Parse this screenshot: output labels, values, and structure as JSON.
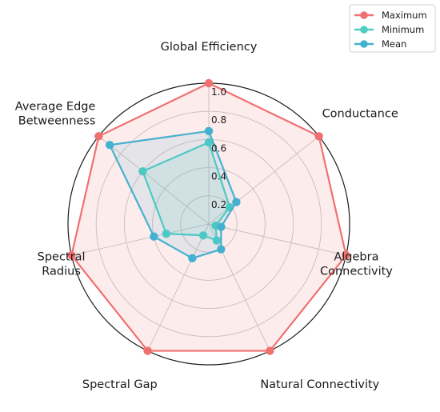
{
  "chart_data": {
    "type": "radar",
    "axes": [
      [
        "Global Efficiency"
      ],
      [
        "Conductance"
      ],
      [
        "Algebra",
        "Connectivity"
      ],
      [
        "Natural Connectivity"
      ],
      [
        "Spectral Gap"
      ],
      [
        "Spectral",
        "Radius"
      ],
      [
        "Average Edge",
        "Betweenness"
      ]
    ],
    "rlim": [
      0,
      1.0
    ],
    "rticks": [
      "0.2",
      "0.4",
      "0.6",
      "0.8",
      "1.0"
    ],
    "rtick_values": [
      0.2,
      0.4,
      0.6,
      0.8,
      1.0
    ],
    "grid": true,
    "legend_position": "top-right",
    "series": [
      {
        "name": "Maximum",
        "color": "#f07070",
        "values": [
          1.0,
          1.0,
          1.0,
          1.0,
          1.0,
          1.0,
          1.0
        ]
      },
      {
        "name": "Minimum",
        "color": "#4ecdc4",
        "values": [
          0.58,
          0.19,
          0.05,
          0.13,
          0.09,
          0.31,
          0.6
        ]
      },
      {
        "name": "Mean",
        "color": "#45b1d0",
        "values": [
          0.66,
          0.25,
          0.09,
          0.2,
          0.27,
          0.4,
          0.9
        ]
      }
    ]
  }
}
